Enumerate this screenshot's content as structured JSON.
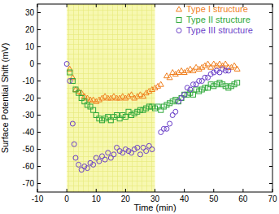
{
  "chart_data": {
    "type": "scatter",
    "x_label": "Time (min)",
    "y_label": "Surface Potential Shift (mV)",
    "xlim": [
      -10,
      70
    ],
    "xticks": [
      -10,
      0,
      10,
      20,
      30,
      40,
      50,
      60,
      70
    ],
    "ylim": [
      -75,
      35
    ],
    "yticks": [
      -70,
      -60,
      -50,
      -40,
      -30,
      -20,
      -10,
      0,
      10,
      20,
      30
    ],
    "shaded_x": [
      0,
      30
    ],
    "legend": "top-right",
    "series": [
      {
        "name": "Type I structure",
        "color": "#f07f1e",
        "marker": "triangle",
        "x": [
          1,
          2,
          3,
          4,
          5,
          6,
          7,
          8,
          9,
          10,
          11,
          12,
          13,
          14,
          15,
          16,
          17,
          18,
          19,
          20,
          21,
          22,
          23,
          24,
          25,
          26,
          27,
          28,
          29,
          30,
          31,
          32,
          34,
          35,
          36,
          37,
          38,
          39,
          40,
          41,
          42,
          43,
          44,
          45,
          46,
          47,
          48,
          49,
          50,
          51,
          52,
          53,
          54,
          55,
          56,
          57,
          58
        ],
        "values": [
          -3,
          -8,
          -15,
          -16,
          -17,
          -19,
          -20,
          -21,
          -21,
          -22,
          -21,
          -20,
          -19,
          -20,
          -20,
          -19,
          -20,
          -20,
          -19,
          -20,
          -19,
          -18,
          -20,
          -19,
          -18,
          -19,
          -17,
          -16,
          -15,
          -14,
          -13,
          -12,
          -7,
          -8,
          -5,
          -6,
          -5,
          -4,
          -5,
          -4,
          -3,
          -4,
          -2,
          -3,
          -2,
          -1,
          0,
          -2,
          0,
          -1,
          0,
          -1,
          0,
          -2,
          -2,
          -1,
          -3
        ]
      },
      {
        "name": "Type II structure",
        "color": "#2fa83a",
        "marker": "square",
        "x": [
          1,
          2,
          3,
          4,
          5,
          6,
          7,
          8,
          9,
          10,
          11,
          12,
          13,
          14,
          15,
          16,
          17,
          18,
          19,
          20,
          21,
          22,
          23,
          24,
          25,
          26,
          27,
          28,
          29,
          30,
          31,
          32,
          33,
          34,
          35,
          36,
          37,
          38,
          39,
          40,
          41,
          42,
          43,
          44,
          45,
          46,
          47,
          48,
          49,
          50,
          51,
          52,
          53,
          54,
          55,
          56,
          57,
          58
        ],
        "values": [
          -5,
          -10,
          -15,
          -17,
          -20,
          -22,
          -24,
          -25,
          -27,
          -30,
          -32,
          -33,
          -32,
          -31,
          -33,
          -31,
          -30,
          -32,
          -30,
          -31,
          -28,
          -30,
          -29,
          -28,
          -27,
          -27,
          -26,
          -25,
          -25,
          -26,
          -25,
          -27,
          -25,
          -24,
          -23,
          -22,
          -21,
          -22,
          -20,
          -18,
          -18,
          -17,
          -18,
          -15,
          -16,
          -15,
          -14,
          -14,
          -12,
          -13,
          -12,
          -11,
          -12,
          -13,
          -14,
          -13,
          -12,
          -11
        ]
      },
      {
        "name": "Type III structure",
        "color": "#6a3fc8",
        "marker": "circle",
        "x": [
          0,
          1,
          2,
          2.5,
          3,
          4,
          5,
          6,
          7,
          8,
          9,
          10,
          11,
          12,
          13,
          14,
          15,
          16,
          17,
          18,
          19,
          20,
          21,
          22,
          23,
          24,
          25,
          26,
          27,
          28,
          29,
          32,
          33,
          34,
          35,
          36,
          37,
          38,
          39,
          40,
          41,
          42,
          43,
          44,
          45,
          46,
          47,
          48,
          49,
          50,
          51,
          52,
          53,
          54,
          55
        ],
        "values": [
          0,
          -10,
          -35,
          -47,
          -55,
          -59,
          -62,
          -60,
          -61,
          -58,
          -59,
          -55,
          -57,
          -54,
          -56,
          -52,
          -55,
          -53,
          -49,
          -51,
          -52,
          -50,
          -51,
          -52,
          -50,
          -49,
          -53,
          -49,
          -51,
          -48,
          -50,
          -40,
          -38,
          -38,
          -35,
          -30,
          -28,
          -22,
          -20,
          -18,
          -14,
          -15,
          -12,
          -12,
          -10,
          -10,
          -8,
          -8,
          -6,
          -5,
          -4,
          -5,
          -3,
          -4,
          -4
        ]
      }
    ]
  }
}
